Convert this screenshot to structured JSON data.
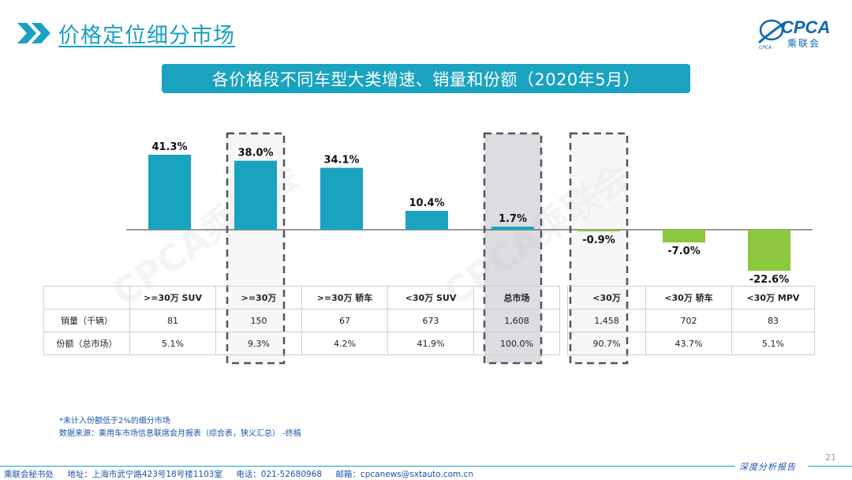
{
  "header": {
    "title": "价格定位细分市场",
    "chevron_icon": "double-chevron-right-icon",
    "accent_color": "#1a9fc1"
  },
  "logo": {
    "text": "CPCA",
    "sub": "乘联会",
    "icon": "globe-swoosh-icon"
  },
  "banner": {
    "title": "各价格段不同车型大类增速、销量和份额（2020年5月）"
  },
  "watermark": {
    "text": "CPCA乘联会"
  },
  "chart_data": {
    "type": "bar",
    "categories": [
      ">=30万 SUV",
      ">=30万",
      ">=30万 轿车",
      "<30万 SUV",
      "总市场",
      "<30万",
      "<30万 轿车",
      "<30万 MPV"
    ],
    "category_labels": [
      ">=30万 SUV",
      ">=30万",
      ">=30万 轿车",
      "<30万 SUV",
      "总市场",
      "<30万",
      "<30万 轿车",
      "<30万 MPV"
    ],
    "values": [
      41.3,
      38.0,
      34.1,
      10.4,
      1.7,
      -0.9,
      -7.0,
      -22.6
    ],
    "value_labels": [
      "41.3%",
      "38.0%",
      "34.1%",
      "10.4%",
      "1.7%",
      "-0.9%",
      "-7.0%",
      "-22.6%"
    ],
    "unit": "%",
    "positive_color": "#19a3be",
    "negative_color": "#8dc63f",
    "highlight_boxes": [
      1,
      4,
      5
    ],
    "highlight_fill": [
      false,
      true,
      false
    ],
    "ylim": [
      -25,
      45
    ],
    "grid": false
  },
  "table": {
    "rows": [
      {
        "label": "销量（千辆）",
        "values": [
          "81",
          "150",
          "67",
          "673",
          "1,608",
          "1,458",
          "702",
          "83"
        ]
      },
      {
        "label": "份额（总市场）",
        "values": [
          "5.1%",
          "9.3%",
          "4.2%",
          "41.9%",
          "100.0%",
          "90.7%",
          "43.7%",
          "5.1%"
        ]
      }
    ]
  },
  "notes": {
    "line1": "*未计入份额低于2%的细分市场",
    "line2": "数据来源：乘用车市场信息联席会月报表（综合表，狭义汇总）   -终稿"
  },
  "footer": {
    "org": "乘联会秘书处",
    "address": "地址：上海市武宁路423号18号楼1103室",
    "phone": "电话：021-52680968",
    "email": "邮箱：cpcanews@sxtauto.com.cn",
    "report_label": "深度分析报告",
    "page_number": "21"
  }
}
